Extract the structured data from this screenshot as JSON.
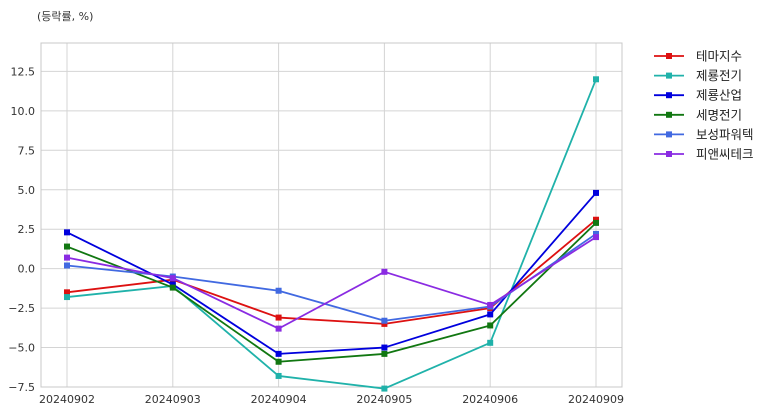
{
  "chart_data": {
    "type": "line",
    "unit_label": "(등락률, %)",
    "x": [
      "20240902",
      "20240903",
      "20240904",
      "20240905",
      "20240906",
      "20240909"
    ],
    "ylim": [
      -7.5,
      14.3
    ],
    "yticks": [
      -7.5,
      -5.0,
      -2.5,
      0.0,
      2.5,
      5.0,
      7.5,
      10.0,
      12.5
    ],
    "ytick_labels": [
      "−7.5",
      "−5.0",
      "−2.5",
      "0.0",
      "2.5",
      "5.0",
      "7.5",
      "10.0",
      "12.5"
    ],
    "grid": true,
    "legend_position": "outside-right-top",
    "series": [
      {
        "name": "테마지수",
        "color": "#dd1111",
        "values": [
          -1.5,
          -0.7,
          -3.1,
          -3.5,
          -2.5,
          3.1
        ]
      },
      {
        "name": "제룡전기",
        "color": "#20b2aa",
        "values": [
          -1.8,
          -1.1,
          -6.8,
          -7.6,
          -4.7,
          12.0
        ]
      },
      {
        "name": "제룡산업",
        "color": "#0000dd",
        "values": [
          2.3,
          -1.0,
          -5.4,
          -5.0,
          -2.9,
          4.8
        ]
      },
      {
        "name": "세명전기",
        "color": "#117711",
        "values": [
          1.4,
          -1.2,
          -5.9,
          -5.4,
          -3.6,
          2.9
        ]
      },
      {
        "name": "보성파워텍",
        "color": "#4169e1",
        "values": [
          0.2,
          -0.5,
          -1.4,
          -3.3,
          -2.4,
          2.2
        ]
      },
      {
        "name": "피앤씨테크",
        "color": "#8a2be2",
        "values": [
          0.7,
          -0.6,
          -3.8,
          -0.2,
          -2.3,
          2.0
        ]
      }
    ]
  }
}
